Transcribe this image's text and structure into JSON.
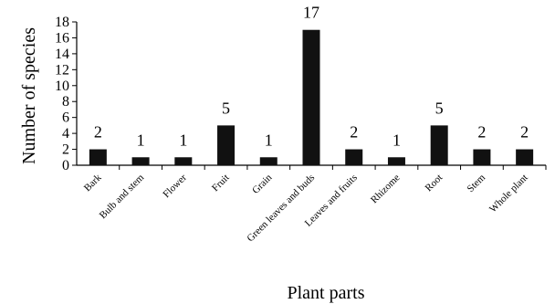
{
  "chart_data": {
    "type": "bar",
    "categories": [
      "Bark",
      "Bulb and stem",
      "Flower",
      "Fruit",
      "Grain",
      "Green  leaves and buds",
      "Leaves and fruits",
      "Rhizome",
      "Root",
      "Stem",
      "Whole plant"
    ],
    "values": [
      2,
      1,
      1,
      5,
      1,
      17,
      2,
      1,
      5,
      2,
      2
    ],
    "data_labels": [
      "2",
      "1",
      "1",
      "5",
      "1",
      "17",
      "2",
      "1",
      "5",
      "2",
      "2"
    ],
    "xlabel": "Plant parts",
    "ylabel": "Number of species",
    "ylim": [
      0,
      18
    ],
    "yticks": [
      0,
      2,
      4,
      6,
      8,
      10,
      12,
      14,
      16,
      18
    ],
    "grid": false,
    "legend": "none",
    "bar_color": "#111111"
  }
}
